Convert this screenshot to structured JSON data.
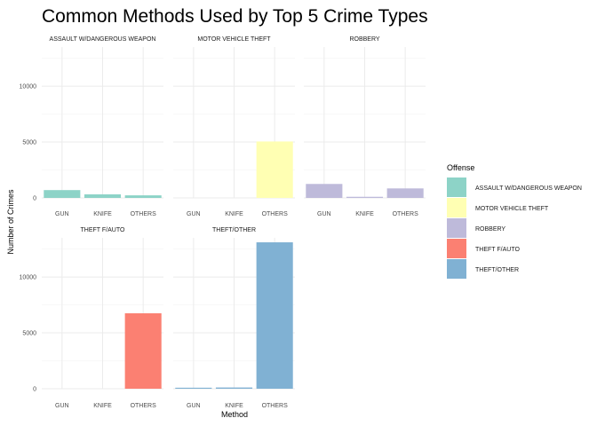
{
  "chart_data": {
    "type": "bar",
    "title": "Common Methods Used by Top 5 Crime Types",
    "xlabel": "Method",
    "ylabel": "Number of Crimes",
    "categories": [
      "GUN",
      "KNIFE",
      "OTHERS"
    ],
    "ylim": [
      0,
      13500
    ],
    "y_ticks": [
      "0",
      "5000",
      "10000"
    ],
    "grid": true,
    "facet_layout": "3 columns x 2 rows, shared y axis",
    "legend": {
      "title": "Offense",
      "placement": "right",
      "entries": [
        {
          "label": "ASSAULT W/DANGEROUS WEAPON",
          "color": "#8DD3C7"
        },
        {
          "label": "MOTOR VEHICLE THEFT",
          "color": "#FFFFB3"
        },
        {
          "label": "ROBBERY",
          "color": "#BEBADA"
        },
        {
          "label": "THEFT F/AUTO",
          "color": "#FB8072"
        },
        {
          "label": "THEFT/OTHER",
          "color": "#80B1D3"
        }
      ]
    },
    "series": [
      {
        "name": "ASSAULT W/DANGEROUS WEAPON",
        "values": [
          700,
          320,
          230
        ]
      },
      {
        "name": "MOTOR VEHICLE THEFT",
        "values": [
          0,
          0,
          5050
        ]
      },
      {
        "name": "ROBBERY",
        "values": [
          1250,
          100,
          850
        ]
      },
      {
        "name": "THEFT F/AUTO",
        "values": [
          0,
          0,
          6750
        ]
      },
      {
        "name": "THEFT/OTHER",
        "values": [
          90,
          110,
          13100
        ]
      }
    ]
  }
}
